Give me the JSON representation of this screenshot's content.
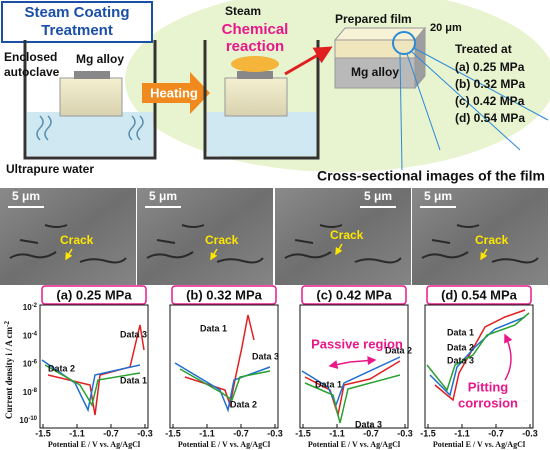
{
  "header": {
    "title_line1": "Steam Coating",
    "title_line2": "Treatment"
  },
  "left_box": {
    "label_line1": "Enclosed",
    "label_line2": "autoclave",
    "alloy": "Mg alloy",
    "water": "Ultrapure water"
  },
  "arrow_label": "Heating",
  "middle_box": {
    "steam": "Steam",
    "reaction_line1": "Chemical",
    "reaction_line2": "reaction"
  },
  "film": {
    "film_label": "Prepared film",
    "thickness": "20 μm",
    "alloy": "Mg alloy"
  },
  "treated": {
    "title": "Treated at",
    "items": [
      "(a) 0.25 MPa",
      "(b) 0.32 MPa",
      "(c) 0.42 MPa",
      "(d) 0.54 MPa"
    ]
  },
  "cross_section_title": "Cross-sectional images of the film",
  "images": [
    {
      "scale": "5 μm",
      "crack": "Crack"
    },
    {
      "scale": "5 μm",
      "crack": "Crack"
    },
    {
      "scale": "5 μm",
      "crack": "Crack"
    },
    {
      "scale": "5 μm",
      "crack": "Crack"
    }
  ],
  "plots": [
    {
      "title": "(a) 0.25 MPa",
      "labels": [
        "Data 3",
        "Data 2",
        "Data 1"
      ]
    },
    {
      "title": "(b) 0.32 MPa",
      "labels": [
        "Data 1",
        "Data 3",
        "Data 2"
      ]
    },
    {
      "title": "(c) 0.42 MPa",
      "labels": [
        "Data 2",
        "Data 1",
        "Data 3"
      ]
    },
    {
      "title": "(d) 0.54 MPa",
      "labels": [
        "Data 1",
        "Data 2",
        "Data 3"
      ]
    }
  ],
  "y_axis_label": "Current density i / A cm",
  "y_axis_exp": "-2",
  "yticks": [
    {
      "base": "10",
      "exp": "-2"
    },
    {
      "base": "10",
      "exp": "-4"
    },
    {
      "base": "10",
      "exp": "-6"
    },
    {
      "base": "10",
      "exp": "-8"
    },
    {
      "base": "10",
      "exp": "-10"
    }
  ],
  "xticks": [
    "-1.5",
    "-1.1",
    "-0.7",
    "-0.3"
  ],
  "x_axis_label": "Potential E / V vs. Ag/AgCl",
  "annotations": {
    "passive": "Passive region",
    "pitting_line1": "Pitting",
    "pitting_line2": "corrosion"
  }
}
